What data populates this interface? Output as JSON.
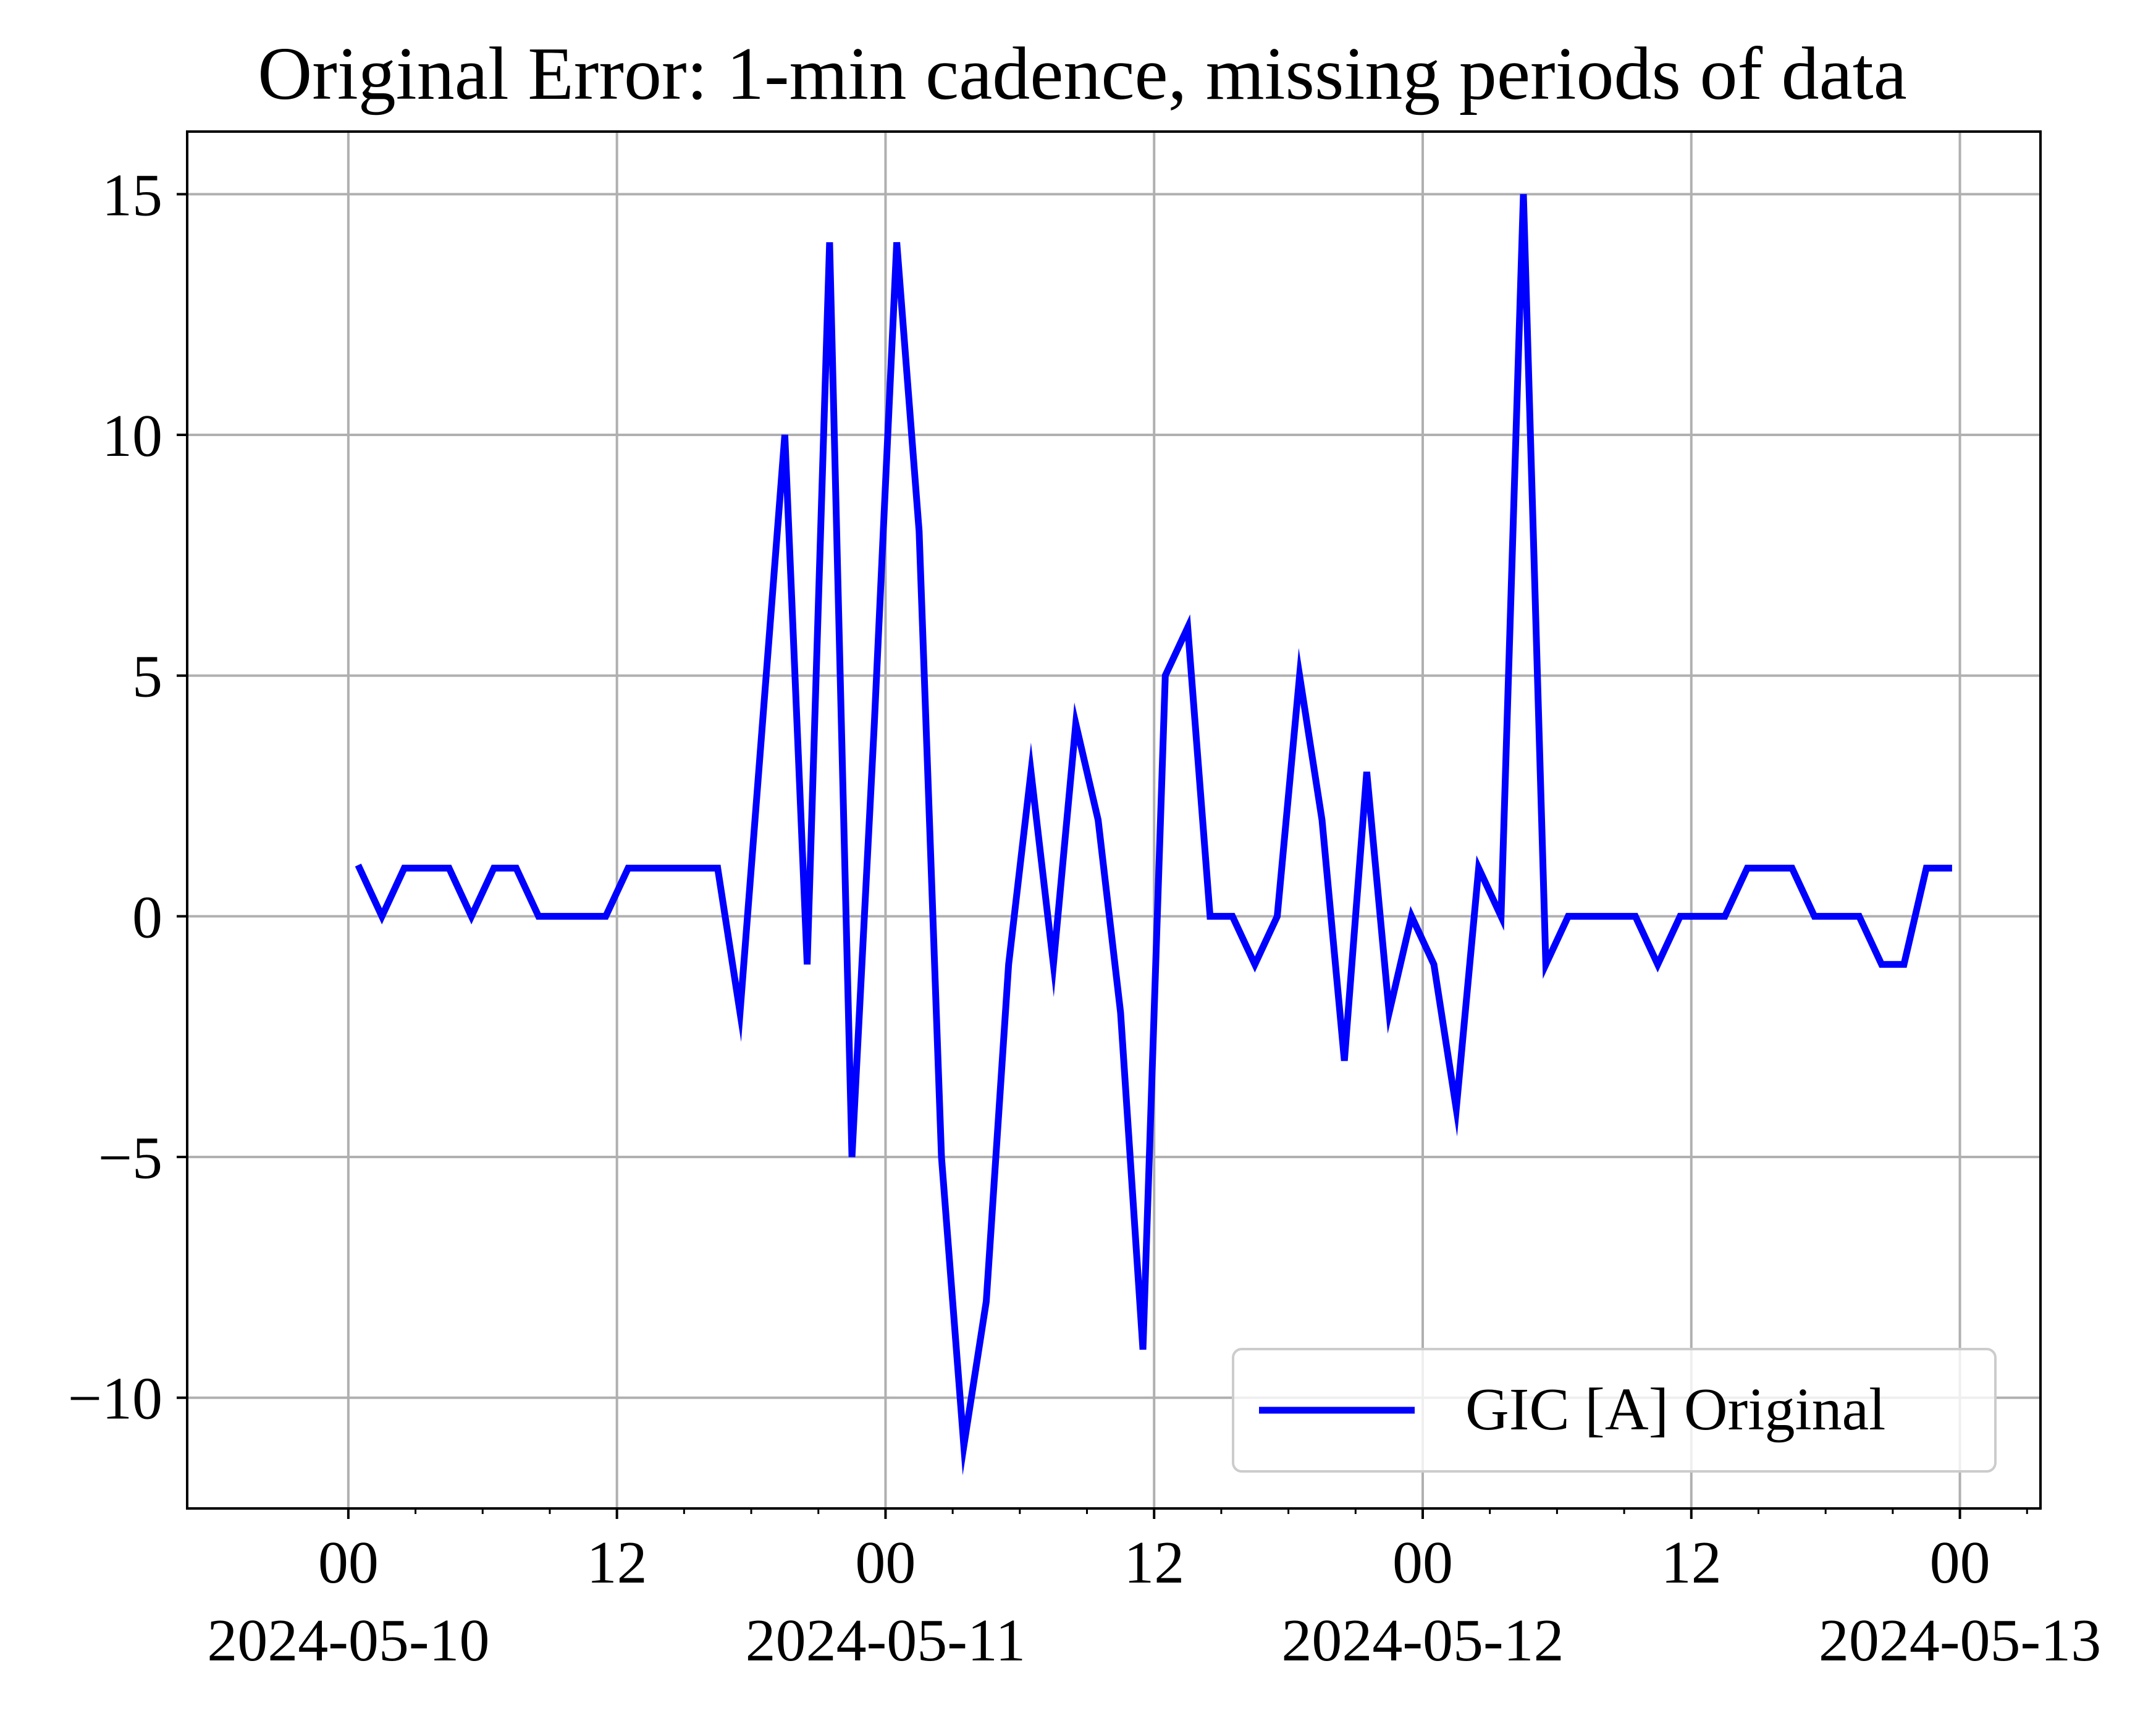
{
  "chart_data": {
    "type": "line",
    "title": "Original Error: 1-min cadence, missing periods of data",
    "xlabel": "",
    "ylabel": "",
    "x_unit": "hours",
    "x_start": "2024-05-10 00:00",
    "xlim_hours": [
      -7.2,
      75.6
    ],
    "ylim": [
      -12.3,
      16.3
    ],
    "grid": true,
    "legend_position": "lower right",
    "y_ticks": [
      {
        "value": -10,
        "label": "−10"
      },
      {
        "value": -5,
        "label": "−5"
      },
      {
        "value": 0,
        "label": "0"
      },
      {
        "value": 5,
        "label": "5"
      },
      {
        "value": 10,
        "label": "10"
      },
      {
        "value": 15,
        "label": "15"
      }
    ],
    "x_ticks": [
      {
        "hour": 0,
        "line1": "00",
        "line2": "2024-05-10"
      },
      {
        "hour": 12,
        "line1": "12",
        "line2": ""
      },
      {
        "hour": 24,
        "line1": "00",
        "line2": "2024-05-11"
      },
      {
        "hour": 36,
        "line1": "12",
        "line2": ""
      },
      {
        "hour": 48,
        "line1": "00",
        "line2": "2024-05-12"
      },
      {
        "hour": 60,
        "line1": "12",
        "line2": ""
      },
      {
        "hour": 72,
        "line1": "00",
        "line2": "2024-05-13"
      }
    ],
    "x_minor_tick_hours": [
      3,
      6,
      9,
      15,
      18,
      21,
      27,
      30,
      33,
      39,
      42,
      45,
      51,
      54,
      57,
      63,
      66,
      69,
      75
    ],
    "series": [
      {
        "name": "GIC [A] Original",
        "color": "#0000ff",
        "x": [
          0.5,
          1.5,
          2.5,
          3.5,
          4.5,
          5.5,
          6.5,
          7.5,
          8.5,
          9.5,
          10.5,
          11.5,
          12.5,
          13.5,
          14.5,
          15.5,
          16.5,
          17.5,
          18.5,
          19.5,
          20.5,
          21.5,
          22.5,
          23.5,
          24.5,
          25.5,
          26.5,
          27.5,
          28.5,
          29.5,
          30.5,
          31.5,
          32.5,
          33.5,
          34.5,
          35.5,
          36.5,
          37.5,
          38.5,
          39.5,
          40.5,
          41.5,
          42.5,
          43.5,
          44.5,
          45.5,
          46.5,
          47.5,
          48.5,
          49.5,
          50.5,
          51.5,
          52.5,
          53.5,
          54.5,
          55.5,
          56.5,
          57.5,
          58.5,
          59.5,
          60.5,
          61.5,
          62.5,
          63.5,
          64.5,
          65.5,
          66.5,
          67.5,
          68.5,
          69.5,
          70.5,
          71.5
        ],
        "y": [
          1,
          0,
          1,
          1,
          1,
          0,
          1,
          1,
          0,
          0,
          0,
          0,
          1,
          1,
          1,
          1,
          1,
          -2,
          4,
          10,
          -1,
          14,
          -5,
          4,
          14,
          8,
          -5,
          -11,
          -8,
          -1,
          3,
          -1,
          4,
          2,
          -2,
          -9,
          5,
          6,
          0,
          0,
          -1,
          0,
          5,
          2,
          -3,
          3,
          -2,
          0,
          -1,
          -4,
          1,
          0,
          15,
          -1,
          0,
          0,
          0,
          0,
          -1,
          0,
          0,
          0,
          1,
          1,
          1,
          0,
          0,
          0,
          -1,
          -1,
          1,
          1
        ]
      }
    ]
  }
}
